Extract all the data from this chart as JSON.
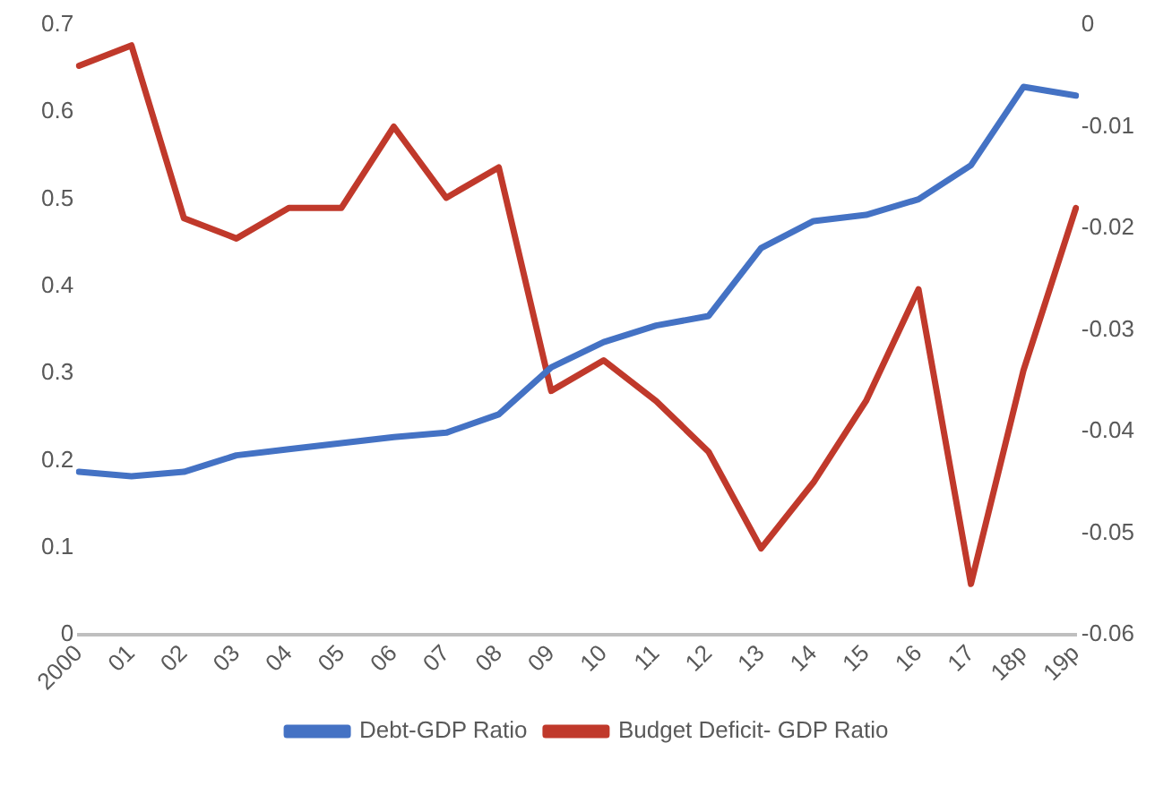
{
  "chart_data": {
    "type": "line",
    "categories": [
      "2000",
      "01",
      "02",
      "03",
      "04",
      "05",
      "06",
      "07",
      "08",
      "09",
      "10",
      "11",
      "12",
      "13",
      "14",
      "15",
      "16",
      "17",
      "18p",
      "19p"
    ],
    "series": [
      {
        "name": "Debt-GDP Ratio",
        "color": "#4472c4",
        "values": [
          0.187,
          0.182,
          0.187,
          0.206,
          0.213,
          0.22,
          0.227,
          0.232,
          0.253,
          0.307,
          0.336,
          0.355,
          0.366,
          0.444,
          0.475,
          0.482,
          0.5,
          0.539,
          0.629,
          0.619
        ]
      },
      {
        "name": "Budget Deficit- GDP Ratio",
        "color": "#c0392b",
        "axis": "y2",
        "values": [
          -0.004,
          -0.002,
          -0.019,
          -0.021,
          -0.018,
          -0.018,
          -0.01,
          -0.017,
          -0.014,
          -0.036,
          -0.033,
          -0.037,
          -0.042,
          -0.0515,
          -0.045,
          -0.037,
          -0.026,
          -0.055,
          -0.034,
          -0.018
        ]
      }
    ],
    "ylim": [
      0,
      0.7
    ],
    "yticks": [
      0,
      0.1,
      0.2,
      0.3,
      0.4,
      0.5,
      0.6,
      0.7
    ],
    "y2lim": [
      -0.06,
      0
    ],
    "y2ticks": [
      -0.06,
      -0.05,
      -0.04,
      -0.03,
      -0.02,
      -0.01,
      0
    ],
    "grid": false,
    "legend": "bottom",
    "marker": "none",
    "line_style": "solid"
  }
}
